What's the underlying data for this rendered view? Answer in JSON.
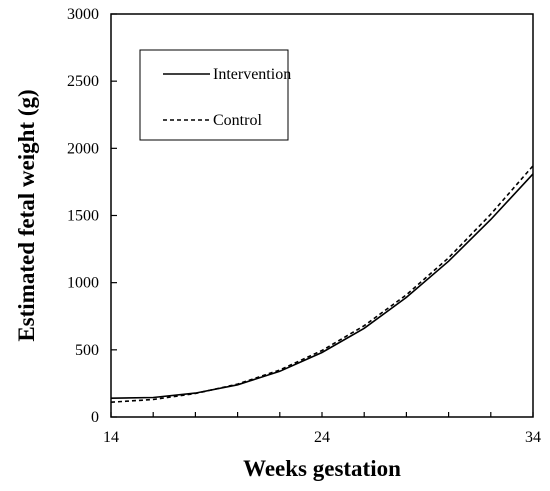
{
  "chart_data": {
    "type": "line",
    "xlabel": "Weeks gestation",
    "ylabel": "Estimated fetal weight (g)",
    "xlim": [
      14,
      34
    ],
    "ylim": [
      0,
      3000
    ],
    "x_ticks": [
      14,
      24,
      34
    ],
    "y_ticks": [
      0,
      500,
      1000,
      1500,
      2000,
      2500,
      3000
    ],
    "grid": false,
    "legend_position": "top-left",
    "series": [
      {
        "name": "Intervention",
        "line_style": "solid",
        "color": "#000000",
        "x": [
          14,
          16,
          18,
          20,
          22,
          24,
          26,
          28,
          30,
          32,
          34
        ],
        "y": [
          140,
          145,
          178,
          240,
          340,
          480,
          660,
          890,
          1160,
          1470,
          1810
        ]
      },
      {
        "name": "Control",
        "line_style": "dashed",
        "color": "#000000",
        "x": [
          14,
          16,
          18,
          20,
          22,
          24,
          26,
          28,
          30,
          32,
          34
        ],
        "y": [
          110,
          130,
          175,
          245,
          350,
          495,
          680,
          910,
          1185,
          1510,
          1870
        ]
      }
    ]
  }
}
